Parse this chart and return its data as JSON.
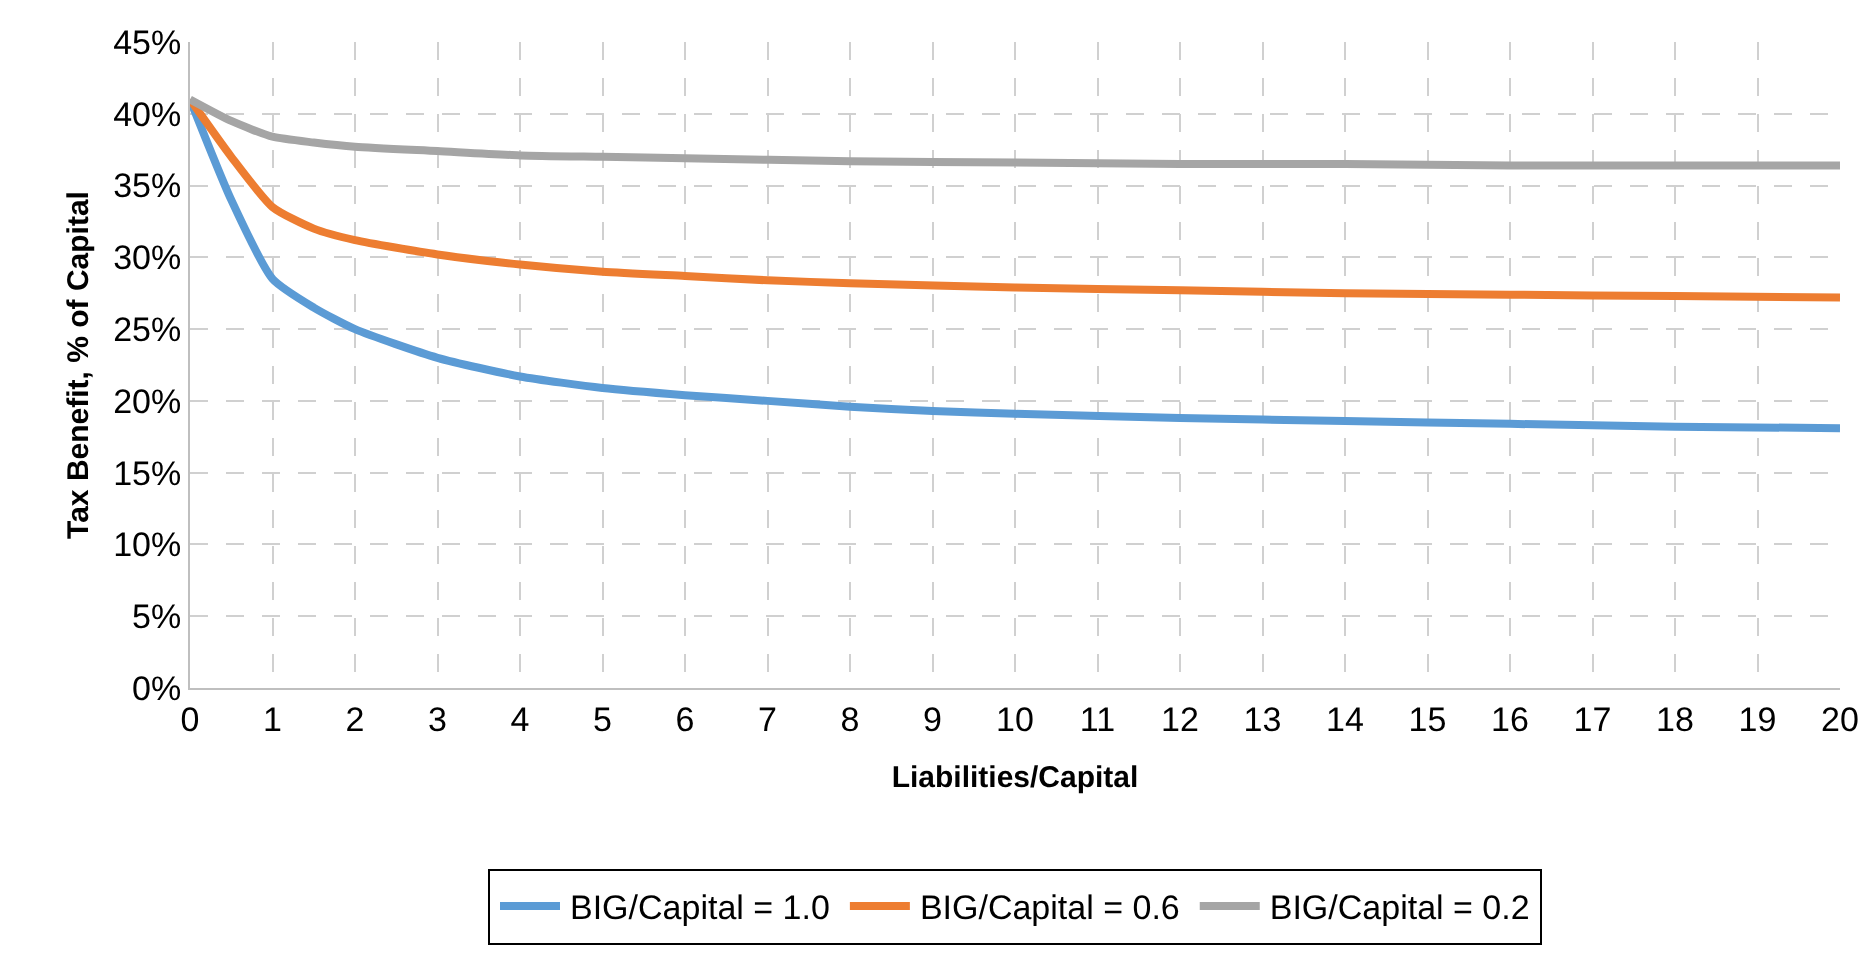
{
  "chart_data": {
    "type": "line",
    "xlabel": "Liabilities/Capital",
    "ylabel": "Tax Benefit, % of Capital",
    "xlim": [
      0,
      20
    ],
    "xticks": [
      0,
      1,
      2,
      3,
      4,
      5,
      6,
      7,
      8,
      9,
      10,
      11,
      12,
      13,
      14,
      15,
      16,
      17,
      18,
      19,
      20
    ],
    "ylim": [
      0,
      45
    ],
    "yticks": [
      {
        "value": 0,
        "label": "0%"
      },
      {
        "value": 5,
        "label": "5%"
      },
      {
        "value": 10,
        "label": "10%"
      },
      {
        "value": 15,
        "label": "15%"
      },
      {
        "value": 20,
        "label": "20%"
      },
      {
        "value": 25,
        "label": "25%"
      },
      {
        "value": 30,
        "label": "30%"
      },
      {
        "value": 35,
        "label": "35%"
      },
      {
        "value": 40,
        "label": "40%"
      },
      {
        "value": 45,
        "label": "45%"
      }
    ],
    "grid": true,
    "legend": "bottom",
    "marker": "none",
    "line_style": "solid",
    "series": [
      {
        "name": "BIG/Capital = 1.0",
        "color": "#5b9bd5",
        "x": [
          0,
          0.5,
          1,
          1.5,
          2,
          3,
          4,
          5,
          6,
          7,
          8,
          9,
          10,
          12,
          14,
          16,
          18,
          20
        ],
        "values": [
          41,
          34,
          28.5,
          26.5,
          25,
          23,
          21.7,
          20.9,
          20.4,
          20,
          19.6,
          19.3,
          19.1,
          18.8,
          18.6,
          18.4,
          18.2,
          18.1
        ]
      },
      {
        "name": "BIG/Capital = 0.6",
        "color": "#ed7d31",
        "x": [
          0,
          0.5,
          1,
          1.5,
          2,
          3,
          4,
          5,
          6,
          7,
          8,
          10,
          12,
          14,
          16,
          18,
          20
        ],
        "values": [
          41,
          37,
          33.5,
          32,
          31.2,
          30.2,
          29.5,
          29,
          28.7,
          28.4,
          28.2,
          27.9,
          27.7,
          27.5,
          27.4,
          27.3,
          27.2
        ]
      },
      {
        "name": "BIG/Capital = 0.2",
        "color": "#a5a5a5",
        "x": [
          0,
          0.5,
          1,
          1.5,
          2,
          3,
          4,
          5,
          6,
          8,
          10,
          12,
          14,
          16,
          18,
          20
        ],
        "values": [
          41,
          39.5,
          38.4,
          38,
          37.7,
          37.4,
          37.1,
          37,
          36.9,
          36.7,
          36.6,
          36.5,
          36.5,
          36.4,
          36.4,
          36.4
        ]
      }
    ]
  }
}
